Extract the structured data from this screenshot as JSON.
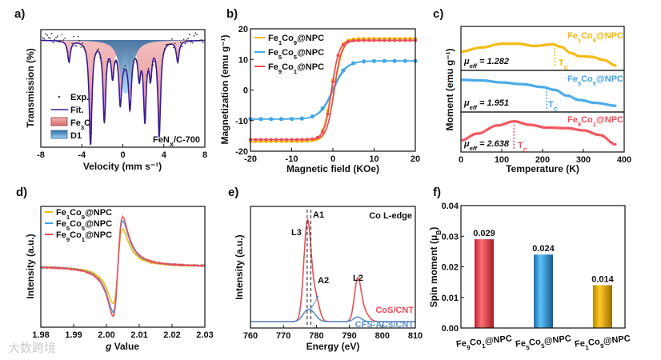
{
  "watermark": "大数跨境",
  "panels": {
    "a": {
      "label": "a)",
      "legend": [
        "Exp.",
        "Fit.",
        "Fe3C",
        "D1"
      ],
      "sample": "FeNX/C-700"
    },
    "b": {
      "label": "b)"
    },
    "c": {
      "label": "c)"
    },
    "d": {
      "label": "d)"
    },
    "e": {
      "label": "e)"
    },
    "f": {
      "label": "f)"
    }
  },
  "colors": {
    "gold": "#f2b705",
    "blue": "#3fa6e6",
    "red": "#ee4c55",
    "navy": "#3a1a9c",
    "fe3c": "#e48a8a",
    "d1": "#6aa8d8"
  },
  "chart_data": [
    {
      "id": "a",
      "type": "line",
      "xlabel": "Velocity (mm s⁻¹)",
      "ylabel": "Transmission (%)",
      "xlim": [
        -8,
        8
      ],
      "xticks": [
        -8,
        -4,
        0,
        4,
        8
      ],
      "series": [
        {
          "name": "Fe3C",
          "kind": "fill",
          "peaks": [
            [
              -5.25,
              0.2
            ],
            [
              -3.15,
              1.0
            ],
            [
              -1.8,
              0.75
            ],
            [
              -1.0,
              0.3
            ],
            [
              -0.25,
              0.5
            ],
            [
              0.7,
              0.5
            ],
            [
              1.6,
              0.3
            ],
            [
              2.15,
              0.72
            ],
            [
              2.7,
              0.3
            ],
            [
              3.55,
              0.9
            ],
            [
              5.35,
              0.2
            ]
          ],
          "width": 0.16
        },
        {
          "name": "D1",
          "kind": "fill",
          "peaks": [
            [
              0.05,
              0.35
            ],
            [
              0.6,
              0.35
            ]
          ],
          "width": 0.45
        },
        {
          "name": "Fit.",
          "kind": "line"
        },
        {
          "name": "Exp.",
          "kind": "scatter"
        }
      ],
      "annotation": "FeNX/C-700"
    },
    {
      "id": "b",
      "type": "line",
      "xlabel": "Magnetic field (KOe)",
      "ylabel": "Magnetization (emu g⁻¹)",
      "xlim": [
        -20,
        20
      ],
      "ylim": [
        -20,
        20
      ],
      "xticks": [
        -20,
        -10,
        0,
        10,
        20
      ],
      "yticks": [
        -20,
        -10,
        0,
        10,
        20
      ],
      "series": [
        {
          "name": "Fe1Co9@NPC",
          "color": "#f2b705",
          "Ms": 16.8,
          "H0": 2.0,
          "Hc": 0.4
        },
        {
          "name": "Fe5Co5@NPC",
          "color": "#3fa6e6",
          "Ms": 9.5,
          "H0": 3.2,
          "Hc": 0.1
        },
        {
          "name": "Fe9Co1@NPC",
          "color": "#ee4c55",
          "Ms": 16.2,
          "H0": 1.8,
          "Hc": 0.3
        }
      ],
      "legend": "top-left"
    },
    {
      "id": "c",
      "type": "line",
      "xlabel": "Temperature (K)",
      "ylabel": "Moment (emu g⁻¹)",
      "xlim": [
        0,
        400
      ],
      "xticks": [
        0,
        100,
        200,
        300,
        400
      ],
      "series": [
        {
          "name": "Fe1Co9@NPC",
          "color": "#f2b705",
          "Tc": 230,
          "Tc_label": "TC",
          "mu_eff": "μeff = 1.282",
          "points": [
            [
              0,
              0.45
            ],
            [
              50,
              0.58
            ],
            [
              100,
              0.7
            ],
            [
              140,
              0.7
            ],
            [
              180,
              0.63
            ],
            [
              225,
              0.68
            ],
            [
              245,
              0.6
            ],
            [
              270,
              0.4
            ],
            [
              290,
              0.3
            ],
            [
              320,
              0.28
            ],
            [
              350,
              0.18
            ],
            [
              380,
              0.0
            ]
          ]
        },
        {
          "name": "Fe5Co5@NPC",
          "color": "#3fa6e6",
          "Tc": 210,
          "Tc_label": "TC",
          "mu_eff": "μeff = 1.951",
          "points": [
            [
              0,
              0.95
            ],
            [
              50,
              0.93
            ],
            [
              100,
              0.86
            ],
            [
              150,
              0.8
            ],
            [
              200,
              0.7
            ],
            [
              230,
              0.6
            ],
            [
              260,
              0.4
            ],
            [
              290,
              0.25
            ],
            [
              330,
              0.15
            ],
            [
              380,
              0.05
            ]
          ]
        },
        {
          "name": "Fe9Co1@NPC",
          "color": "#ee4c55",
          "Tc": 130,
          "Tc_label": "TC",
          "mu_eff": "μeff = 2.638",
          "points": [
            [
              0,
              0.25
            ],
            [
              40,
              0.5
            ],
            [
              90,
              0.8
            ],
            [
              130,
              0.95
            ],
            [
              170,
              0.82
            ],
            [
              210,
              0.72
            ],
            [
              260,
              0.7
            ],
            [
              300,
              0.62
            ],
            [
              340,
              0.45
            ],
            [
              380,
              0.1
            ]
          ]
        }
      ]
    },
    {
      "id": "d",
      "type": "line",
      "xlabel": "g Value",
      "ylabel": "Intensity (a.u.)",
      "xlim": [
        1.98,
        2.03
      ],
      "xticks": [
        "1.98",
        "1.99",
        "2.00",
        "2.01",
        "2.02",
        "2.03"
      ],
      "center_g": 2.0035,
      "series": [
        {
          "name": "Fe1Co9@NPC",
          "color": "#f2b705",
          "amplitude": 0.75
        },
        {
          "name": "Fe5Co5@NPC",
          "color": "#3fa6e6",
          "amplitude": 0.92
        },
        {
          "name": "Fe9Co1@NPC",
          "color": "#ee4c55",
          "amplitude": 1.0
        }
      ],
      "legend": "top-left"
    },
    {
      "id": "e",
      "type": "line",
      "title": "Co L-edge",
      "xlabel": "Energy (eV)",
      "ylabel": "Intensity (a.u.)",
      "xlim": [
        760,
        810
      ],
      "xticks": [
        760,
        770,
        780,
        790,
        800,
        810
      ],
      "annotations": [
        "L3",
        "A1",
        "A2",
        "L2"
      ],
      "dashed_lines": [
        777.2,
        778.3
      ],
      "series": [
        {
          "name": "CoS/CNT",
          "color": "#ee4c55",
          "peaks": [
            [
              777.3,
              0.97,
              1.1
            ],
            [
              779.8,
              0.22,
              1.1
            ],
            [
              792.5,
              0.38,
              1.0
            ],
            [
              794.3,
              0.1,
              1.4
            ]
          ]
        },
        {
          "name": "CFS-ACs/CNT",
          "color": "#5b93cc",
          "peaks": [
            [
              777.2,
              0.1,
              1.4
            ],
            [
              779.2,
              0.05,
              1.3
            ],
            [
              792.5,
              0.045,
              1.2
            ]
          ]
        }
      ]
    },
    {
      "id": "f",
      "type": "bar",
      "ylabel": "Spin moment (μB)",
      "ylim": [
        0,
        0.04
      ],
      "yticks": [
        "0.00",
        "0.01",
        "0.02",
        "0.03",
        "0.04"
      ],
      "categories": [
        "Fe9Co1@NPC",
        "Fe5Co5@NPC",
        "Fe1Co9@NPC"
      ],
      "values": [
        0.029,
        0.024,
        0.014
      ],
      "value_labels": [
        "0.029",
        "0.024",
        "0.014"
      ],
      "bar_colors": [
        "#ee4c55",
        "#3fa6e6",
        "#f2b705"
      ]
    }
  ]
}
